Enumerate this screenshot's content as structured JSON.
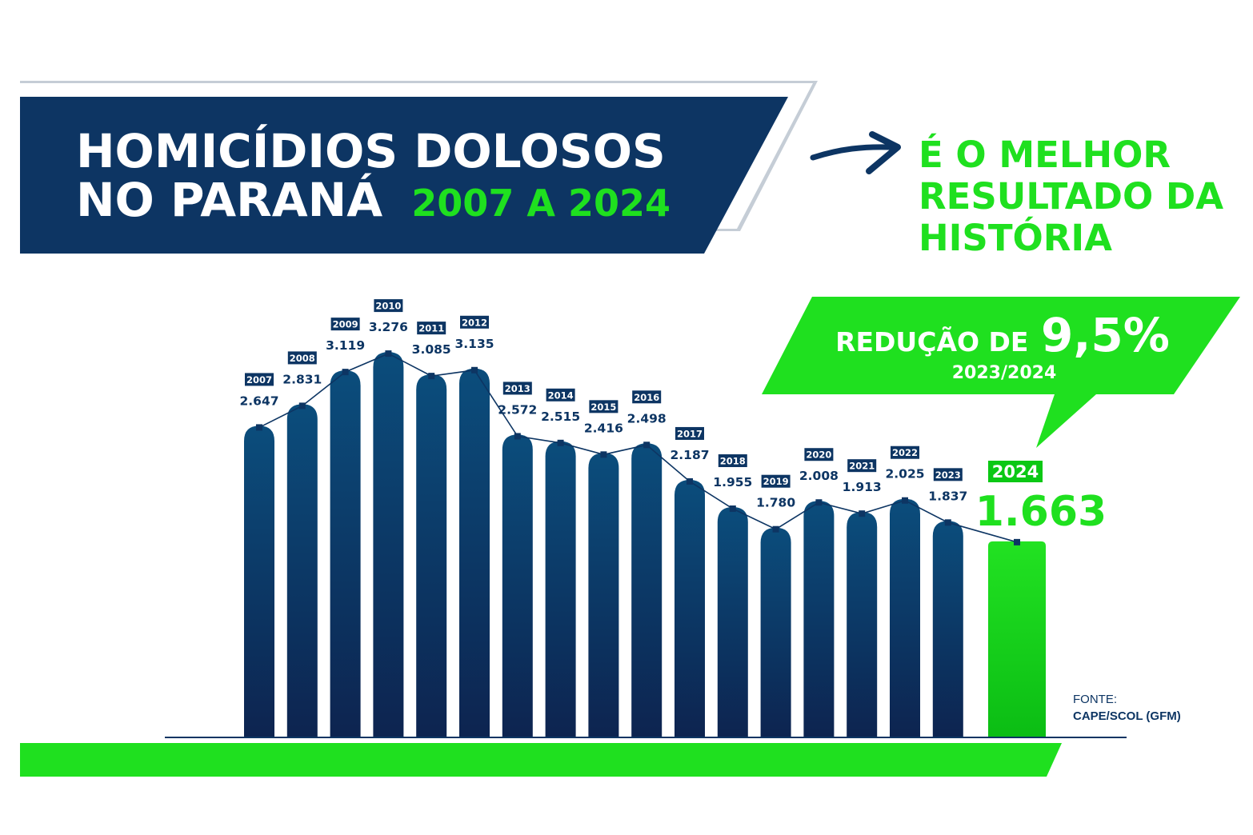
{
  "header": {
    "title_line1": "HOMICÍDIOS DOLOSOS",
    "title_line2": "NO PARANÁ",
    "title_period": "2007 A 2024"
  },
  "headline": {
    "line1": "É O MELHOR",
    "line2": "RESULTADO DA",
    "line3": "HISTÓRIA"
  },
  "callout": {
    "label": "REDUÇÃO DE",
    "value": "9,5%",
    "period": "2023/2024"
  },
  "highlight": {
    "year": "2024",
    "value": "1.663"
  },
  "source": {
    "label": "FONTE:",
    "text": "CAPE/SCOL (GFM)"
  },
  "colors": {
    "navy": "#0d3563",
    "bar_top": "#0b4d7c",
    "bar_bottom": "#0d2450",
    "green": "#1fe01f",
    "highlight_green": "#0bc814",
    "outline_gray": "#c5cdd6"
  },
  "chart_data": {
    "type": "bar",
    "categories": [
      "2007",
      "2008",
      "2009",
      "2010",
      "2011",
      "2012",
      "2013",
      "2014",
      "2015",
      "2016",
      "2017",
      "2018",
      "2019",
      "2020",
      "2021",
      "2022",
      "2023",
      "2024"
    ],
    "values": [
      2647,
      2831,
      3119,
      3276,
      3085,
      3135,
      2572,
      2515,
      2416,
      2498,
      2187,
      1955,
      1780,
      2008,
      1913,
      2025,
      1837,
      1663
    ],
    "value_labels": [
      "2.647",
      "2.831",
      "3.119",
      "3.276",
      "3.085",
      "3.135",
      "2.572",
      "2.515",
      "2.416",
      "2.498",
      "2.187",
      "1.955",
      "1.780",
      "2.008",
      "1.913",
      "2.025",
      "1.837",
      "1.663"
    ],
    "highlighted_category": "2024",
    "trend_line": true,
    "grid": false,
    "legend": "none"
  }
}
